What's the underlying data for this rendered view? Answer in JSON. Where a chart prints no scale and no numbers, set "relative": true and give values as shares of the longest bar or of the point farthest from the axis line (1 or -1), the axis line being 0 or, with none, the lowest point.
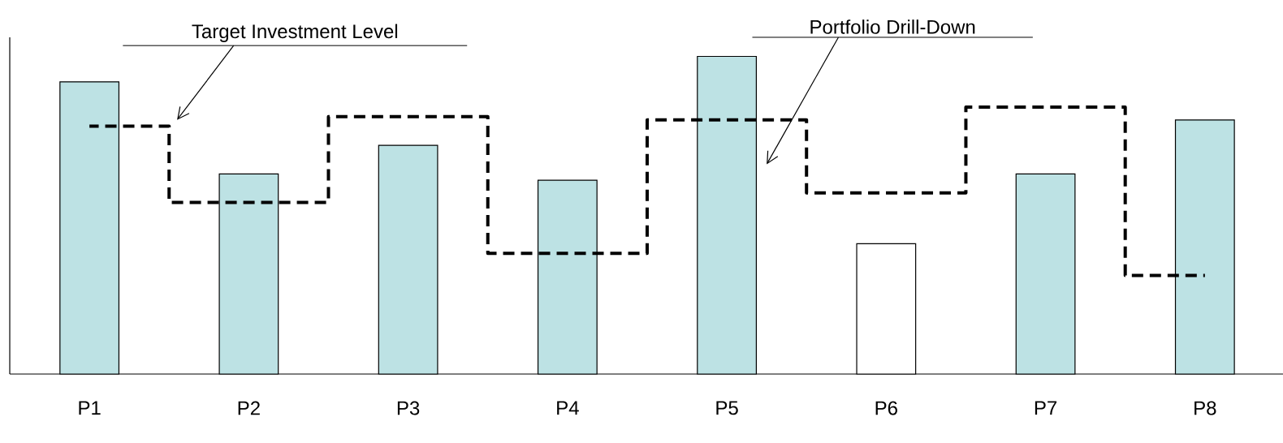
{
  "chart_data": {
    "type": "bar",
    "relative": true,
    "categories": [
      "P1",
      "P2",
      "P3",
      "P4",
      "P5",
      "P6",
      "P7",
      "P8"
    ],
    "series": [
      {
        "colors": [
          "#bde2e4",
          "#bde2e4",
          "#bde2e4",
          "#bde2e4",
          "#bde2e4",
          "#ffffff",
          "#bde2e4",
          "#bde2e4"
        ],
        "values": [
          0.92,
          0.63,
          0.72,
          0.61,
          1.0,
          0.41,
          0.63,
          0.8
        ]
      },
      {
        "type": "step",
        "color": "#000000",
        "line_style": "dashed",
        "values": [
          0.78,
          0.54,
          0.81,
          0.38,
          0.8,
          0.57,
          0.84,
          0.31
        ]
      }
    ],
    "annotations": [
      "Target Investment Level",
      "Portfolio Drill-Down"
    ]
  }
}
